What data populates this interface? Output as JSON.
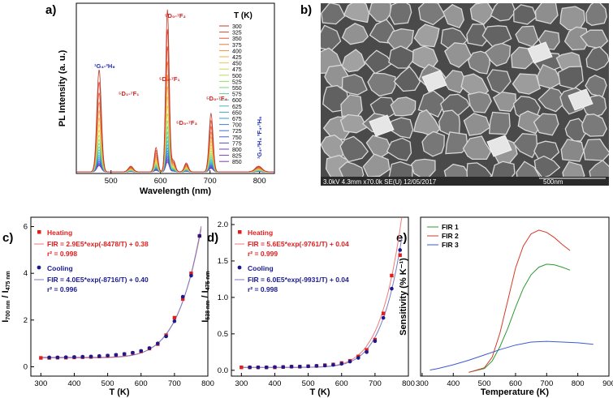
{
  "chart_data": [
    {
      "panel": "a)",
      "type": "line",
      "xlabel": "Wavelength (nm)",
      "ylabel": "PL Intensity (a. u.)",
      "xlim": [
        430,
        830
      ],
      "xticks": [
        500,
        600,
        700,
        800
      ],
      "legend_title": "T (K)",
      "temperatures": [
        "300",
        "325",
        "350",
        "375",
        "400",
        "425",
        "450",
        "475",
        "500",
        "525",
        "550",
        "575",
        "600",
        "625",
        "650",
        "675",
        "700",
        "725",
        "750",
        "775",
        "800",
        "825",
        "850"
      ],
      "peaks": [
        {
          "center": 476,
          "amp": 0.63,
          "sigma": 4.5
        },
        {
          "center": 540,
          "amp": 0.035,
          "sigma": 5
        },
        {
          "center": 591,
          "amp": 0.15,
          "sigma": 3.5
        },
        {
          "center": 614,
          "amp": 1.0,
          "sigma": 3.5
        },
        {
          "center": 626,
          "amp": 0.07,
          "sigma": 4
        },
        {
          "center": 652,
          "amp": 0.055,
          "sigma": 4
        },
        {
          "center": 702,
          "amp": 0.36,
          "sigma": 4
        },
        {
          "center": 798,
          "amp": 0.035,
          "sigma": 7
        }
      ],
      "annotations": [
        {
          "text": "¹G₄-³H₆",
          "color": "#1f2db5"
        },
        {
          "text": "⁵D₀-⁷F₂",
          "color": "#d62020"
        },
        {
          "text": "⁵D₀-⁷F₁",
          "color": "#d62020"
        },
        {
          "text": "⁵D₁-⁷F₁",
          "color": "#d62020"
        },
        {
          "text": "⁵D₀-⁷F₃",
          "color": "#d62020"
        },
        {
          "text": "⁵D₀-⁷F₄",
          "color": "#d62020"
        },
        {
          "text": "¹G₄-³H₄ ³F₄-³H₆",
          "color": "#1f2db5"
        }
      ]
    },
    {
      "panel": "b)",
      "type": "image",
      "caption_left": "3.0kV 4.3mm x70.0k SE(U) 12/05/2017",
      "caption_right": "500nm"
    },
    {
      "panel": "c)",
      "type": "scatter",
      "xlabel": "T (K)",
      "ylabel": "I700 nm / I475 nm",
      "xlim": [
        270,
        800
      ],
      "ylim": [
        -0.4,
        6.4
      ],
      "xticks": [
        300,
        400,
        500,
        600,
        700,
        800
      ],
      "yticks": [
        0,
        2,
        4,
        6
      ],
      "series": [
        {
          "name": "Heating",
          "color": "#e01e1e",
          "marker": "square",
          "x": [
            300,
            325,
            350,
            375,
            400,
            425,
            450,
            475,
            500,
            525,
            550,
            575,
            600,
            625,
            650,
            675,
            700,
            725,
            750,
            775
          ],
          "y": [
            0.38,
            0.38,
            0.39,
            0.39,
            0.4,
            0.41,
            0.42,
            0.44,
            0.47,
            0.5,
            0.54,
            0.59,
            0.66,
            0.78,
            0.97,
            1.35,
            2.1,
            2.9,
            4.0,
            5.6
          ]
        },
        {
          "name": "Cooling",
          "color": "#1a1a8c",
          "marker": "circle",
          "x": [
            325,
            350,
            375,
            400,
            425,
            450,
            475,
            500,
            525,
            550,
            575,
            600,
            625,
            650,
            675,
            700,
            725,
            750,
            775
          ],
          "y": [
            0.4,
            0.4,
            0.41,
            0.42,
            0.43,
            0.44,
            0.46,
            0.48,
            0.51,
            0.55,
            0.6,
            0.68,
            0.8,
            1.0,
            1.3,
            1.95,
            3.0,
            3.9,
            5.6
          ]
        }
      ],
      "legend": [
        {
          "text": "Heating",
          "color": "#e01e1e"
        },
        {
          "text": "FIR = 2.9E5*exp(-8478/T) + 0.38",
          "color": "#e01e1e"
        },
        {
          "text": "r² = 0.998",
          "color": "#e01e1e"
        },
        {
          "text": "Cooling",
          "color": "#1a1a8c"
        },
        {
          "text": "FIR = 4.0E5*exp(-8716/T) + 0.40",
          "color": "#1a1a8c"
        },
        {
          "text": "r² = 0.996",
          "color": "#1a1a8c"
        }
      ],
      "fits": [
        {
          "color": "#ef7b7b",
          "A": 290000,
          "B": 8478,
          "C": 0.38
        },
        {
          "color": "#7a7ac8",
          "A": 400000,
          "B": 8716,
          "C": 0.4
        }
      ]
    },
    {
      "panel": "d)",
      "type": "scatter",
      "xlabel": "T (K)",
      "ylabel": "I538 nm / I475 nm",
      "xlim": [
        270,
        800
      ],
      "ylim": [
        -0.08,
        2.1
      ],
      "xticks": [
        300,
        400,
        500,
        600,
        700,
        800
      ],
      "yticks": [
        0.0,
        0.5,
        1.0,
        1.5,
        2.0
      ],
      "ytick_labels": [
        "0.0",
        "0.5",
        "1.0",
        "1.5",
        "2.0"
      ],
      "series": [
        {
          "name": "Heating",
          "color": "#e01e1e",
          "marker": "square",
          "x": [
            300,
            325,
            350,
            375,
            400,
            425,
            450,
            475,
            500,
            525,
            550,
            575,
            600,
            625,
            650,
            675,
            700,
            725,
            750,
            775
          ],
          "y": [
            0.04,
            0.04,
            0.04,
            0.04,
            0.04,
            0.045,
            0.05,
            0.05,
            0.055,
            0.06,
            0.07,
            0.08,
            0.1,
            0.13,
            0.19,
            0.28,
            0.42,
            0.78,
            1.3,
            1.58
          ]
        },
        {
          "name": "Cooling",
          "color": "#1a1a8c",
          "marker": "circle",
          "x": [
            325,
            350,
            375,
            400,
            425,
            450,
            475,
            500,
            525,
            550,
            575,
            600,
            625,
            650,
            675,
            700,
            725,
            750,
            775
          ],
          "y": [
            0.04,
            0.04,
            0.04,
            0.045,
            0.045,
            0.05,
            0.05,
            0.055,
            0.06,
            0.065,
            0.075,
            0.09,
            0.12,
            0.17,
            0.25,
            0.4,
            0.72,
            1.12,
            1.65
          ]
        }
      ],
      "legend": [
        {
          "text": "Heating",
          "color": "#e01e1e"
        },
        {
          "text": "FIR = 5.6E5*exp(-9761/T) + 0.04",
          "color": "#e01e1e"
        },
        {
          "text": "r² = 0.999",
          "color": "#e01e1e"
        },
        {
          "text": "Cooling",
          "color": "#1a1a8c"
        },
        {
          "text": "FIR = 6.0E5*exp(-9931/T) + 0.04",
          "color": "#1a1a8c"
        },
        {
          "text": "r² = 0.998",
          "color": "#1a1a8c"
        }
      ],
      "fits": [
        {
          "color": "#ef7b7b",
          "A": 560000,
          "B": 9761,
          "C": 0.04
        },
        {
          "color": "#7a7ac8",
          "A": 600000,
          "B": 9931,
          "C": 0.04
        }
      ]
    },
    {
      "panel": "e)",
      "type": "line",
      "xlabel": "Temperature (K)",
      "ylabel": "Sensitivity (% K⁻¹)",
      "xlim": [
        295,
        900
      ],
      "ylim": [
        -0.05,
        2.05
      ],
      "xticks": [
        300,
        400,
        500,
        600,
        700,
        800,
        900
      ],
      "series": [
        {
          "name": "FIR 1",
          "color": "#2e9a2e",
          "x": [
            450,
            500,
            525,
            550,
            575,
            600,
            625,
            650,
            675,
            700,
            725,
            750,
            775
          ],
          "y": [
            0.0,
            0.05,
            0.15,
            0.34,
            0.58,
            0.86,
            1.11,
            1.29,
            1.39,
            1.43,
            1.42,
            1.39,
            1.35
          ]
        },
        {
          "name": "FIR 2",
          "color": "#d63a2a",
          "x": [
            450,
            500,
            525,
            550,
            575,
            600,
            625,
            650,
            675,
            700,
            725,
            750,
            775
          ],
          "y": [
            0.0,
            0.06,
            0.2,
            0.52,
            0.95,
            1.38,
            1.67,
            1.83,
            1.88,
            1.85,
            1.78,
            1.69,
            1.61
          ]
        },
        {
          "name": "FIR 3",
          "color": "#3a5ad6",
          "x": [
            325,
            350,
            400,
            450,
            500,
            550,
            600,
            650,
            700,
            750,
            800,
            850
          ],
          "y": [
            0.03,
            0.05,
            0.1,
            0.16,
            0.23,
            0.3,
            0.36,
            0.4,
            0.41,
            0.4,
            0.39,
            0.37
          ]
        }
      ]
    }
  ]
}
